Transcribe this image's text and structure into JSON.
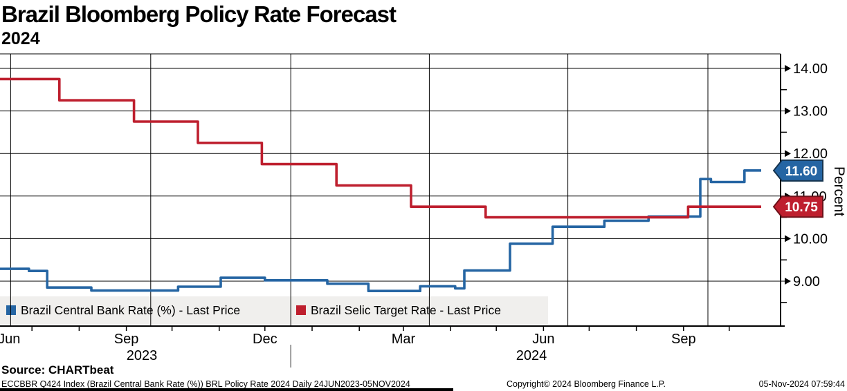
{
  "header": {
    "title": "Brazil Bloomberg Policy Rate Forecast",
    "subtitle": "2024"
  },
  "legend": [
    {
      "label": "Brazil Central Bank Rate (%) - Last Price",
      "color": "#2565a3"
    },
    {
      "label": "Brazil Selic Target Rate - Last Price",
      "color": "#be1f2e"
    }
  ],
  "badges": [
    {
      "label": "11.60",
      "value": 11.6,
      "fill": "#2565a3",
      "stroke": "#16344f"
    },
    {
      "label": "10.75",
      "value": 10.75,
      "fill": "#be1f2e",
      "stroke": "#6e1119"
    }
  ],
  "source_label": "Source: CHARTbeat",
  "footer": {
    "left": "ECCBBR Q424 Index (Brazil Central Bank Rate (%)) BRL Policy Rate 2024  Daily 24JUN2023-05NOV2024",
    "center": "Copyright© 2024 Bloomberg Finance L.P.",
    "right": "05-Nov-2024 07:59:44"
  },
  "chart_data": {
    "type": "line",
    "step": true,
    "title": "Brazil Bloomberg Policy Rate Forecast 2024",
    "ylabel": "Percent",
    "x_range": [
      "2023-06-24",
      "2024-11-05"
    ],
    "ylim": [
      7.95,
      14.35
    ],
    "grid": true,
    "legend_position": "bottom-left",
    "y_ticks": [
      {
        "value": 14,
        "label": "14.00"
      },
      {
        "value": 13,
        "label": "13.00"
      },
      {
        "value": 12,
        "label": "12.00"
      },
      {
        "value": 11,
        "label": "11.00"
      },
      {
        "value": 10,
        "label": "10.00"
      },
      {
        "value": 9,
        "label": "9.00"
      }
    ],
    "y_minor_ticks": [
      13.5,
      12.5,
      11.5,
      10.5,
      9.5,
      8.5
    ],
    "x_gridline_dates": [
      "2023-07-01",
      "2023-10-01",
      "2024-01-01",
      "2024-04-01",
      "2024-07-01",
      "2024-10-01"
    ],
    "x_tick_labels": [
      {
        "label": "Jun",
        "date": "2023-06-30"
      },
      {
        "label": "Sep",
        "date": "2023-09-15"
      },
      {
        "label": "Dec",
        "date": "2023-12-15"
      },
      {
        "label": "Mar",
        "date": "2024-03-15"
      },
      {
        "label": "Jun",
        "date": "2024-06-15"
      },
      {
        "label": "Sep",
        "date": "2024-09-15"
      }
    ],
    "year_labels": [
      "2023",
      "2024"
    ],
    "series": [
      {
        "name": "Brazil Central Bank Rate (%) - Last Price",
        "color": "#2565a3",
        "last_value": 11.6,
        "points": [
          [
            "2023-06-24",
            9.29
          ],
          [
            "2023-07-13",
            9.24
          ],
          [
            "2023-07-25",
            8.85
          ],
          [
            "2023-08-23",
            8.78
          ],
          [
            "2023-10-19",
            8.87
          ],
          [
            "2023-11-16",
            9.08
          ],
          [
            "2023-12-15",
            9.02
          ],
          [
            "2024-01-25",
            8.94
          ],
          [
            "2024-02-21",
            8.77
          ],
          [
            "2024-03-26",
            8.88
          ],
          [
            "2024-04-18",
            8.83
          ],
          [
            "2024-04-24",
            9.25
          ],
          [
            "2024-05-24",
            9.88
          ],
          [
            "2024-06-21",
            10.28
          ],
          [
            "2024-07-25",
            10.42
          ],
          [
            "2024-08-23",
            10.52
          ],
          [
            "2024-09-26",
            11.4
          ],
          [
            "2024-10-03",
            11.33
          ],
          [
            "2024-10-25",
            11.6
          ]
        ]
      },
      {
        "name": "Brazil Selic Target Rate - Last Price",
        "color": "#be1f2e",
        "last_value": 10.75,
        "points": [
          [
            "2023-06-24",
            13.75
          ],
          [
            "2023-08-02",
            13.25
          ],
          [
            "2023-09-20",
            12.75
          ],
          [
            "2023-11-01",
            12.25
          ],
          [
            "2023-12-13",
            11.75
          ],
          [
            "2024-01-31",
            11.25
          ],
          [
            "2024-03-20",
            10.75
          ],
          [
            "2024-05-08",
            10.5
          ],
          [
            "2024-09-18",
            10.75
          ]
        ]
      }
    ]
  }
}
